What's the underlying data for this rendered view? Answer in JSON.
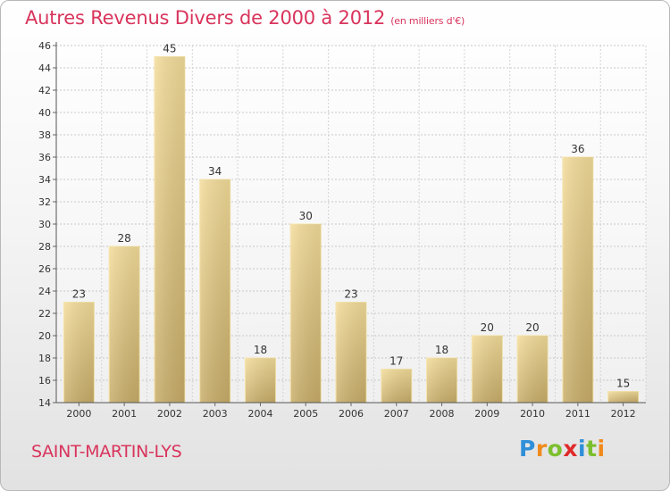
{
  "chart_data": {
    "type": "bar",
    "title": "Autres Revenus Divers de 2000 à 2012",
    "subtitle": "(en milliers d'€)",
    "categories": [
      "2000",
      "2001",
      "2002",
      "2003",
      "2004",
      "2005",
      "2006",
      "2007",
      "2008",
      "2009",
      "2010",
      "2011",
      "2012"
    ],
    "values": [
      23,
      28,
      45,
      34,
      18,
      30,
      23,
      17,
      18,
      20,
      20,
      36,
      15
    ],
    "ylim": [
      14,
      46
    ],
    "yticks": [
      14,
      16,
      18,
      20,
      22,
      24,
      26,
      28,
      30,
      32,
      34,
      36,
      38,
      40,
      42,
      44,
      46
    ],
    "grid": true,
    "bar_color": "#e8cc80",
    "title_color": "#d9345c"
  },
  "footer": {
    "place": "SAINT-MARTIN-LYS"
  },
  "logo": {
    "text": "Proxiti",
    "letters": [
      {
        "ch": "P",
        "color": "#2f8fd8"
      },
      {
        "ch": "r",
        "color": "#f08a1c"
      },
      {
        "ch": "o",
        "color": "#7cbf2e"
      },
      {
        "ch": "x",
        "color": "#e02a2a"
      },
      {
        "ch": "i",
        "color": "#2f8fd8"
      },
      {
        "ch": "t",
        "color": "#7cbf2e"
      },
      {
        "ch": "i",
        "color": "#f08a1c"
      }
    ]
  }
}
